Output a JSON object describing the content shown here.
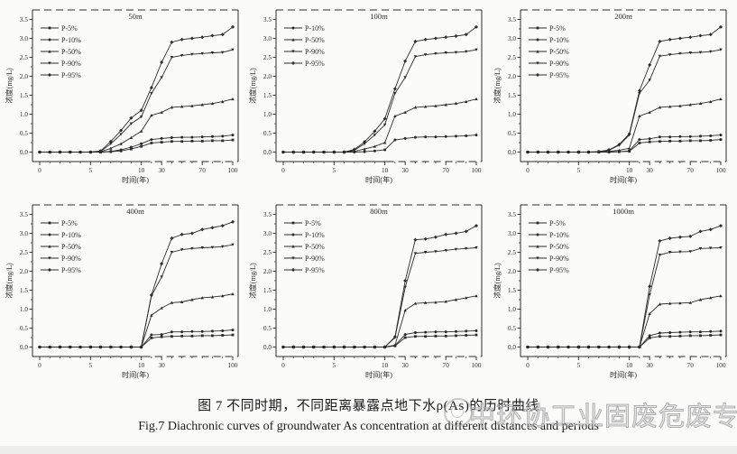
{
  "figure": {
    "caption_cn": "图 7  不同时期，不同距离暴露点地下水ρ(As)的历时曲线",
    "caption_en": "Fig.7 Diachronic curves of groundwater As concentration at different distances and periods",
    "watermark": "中环协工业固废危废专委会",
    "line_color": "#2b2b2b",
    "watermark_color": "#b0b0b0",
    "strip_color": "#ededeb"
  },
  "chart_data": [
    {
      "type": "line",
      "title": "50m",
      "xlabel": "时间(年)",
      "ylabel": "浓度(mg/L)",
      "x": [
        0,
        1,
        2,
        3,
        4,
        5,
        6,
        7,
        8,
        9,
        10,
        20,
        30,
        40,
        50,
        60,
        70,
        80,
        90,
        100
      ],
      "xticks": [
        0,
        5,
        10,
        30,
        70,
        100
      ],
      "yticks": [
        0.0,
        0.5,
        1.0,
        1.5,
        2.0,
        2.5,
        3.0,
        3.5
      ],
      "ylim": [
        -0.25,
        3.75
      ],
      "grid": false,
      "legend_position": "top-left",
      "series": [
        {
          "name": "P-5%",
          "marker": "square",
          "values": [
            0,
            0,
            0,
            0,
            0,
            0,
            0,
            0.01,
            0.03,
            0.08,
            0.15,
            0.24,
            0.26,
            0.28,
            0.28,
            0.29,
            0.29,
            0.3,
            0.3,
            0.32
          ]
        },
        {
          "name": "P-10%",
          "marker": "circle",
          "values": [
            0,
            0,
            0,
            0,
            0,
            0,
            0,
            0.02,
            0.06,
            0.13,
            0.22,
            0.33,
            0.36,
            0.38,
            0.39,
            0.39,
            0.4,
            0.41,
            0.42,
            0.45
          ]
        },
        {
          "name": "P-50%",
          "marker": "triangle-up",
          "values": [
            0,
            0,
            0,
            0,
            0,
            0,
            0.01,
            0.1,
            0.22,
            0.38,
            0.55,
            0.97,
            1.05,
            1.18,
            1.2,
            1.22,
            1.25,
            1.28,
            1.33,
            1.4
          ]
        },
        {
          "name": "P-90%",
          "marker": "triangle-down",
          "values": [
            0,
            0,
            0,
            0,
            0,
            0,
            0.02,
            0.22,
            0.47,
            0.75,
            0.93,
            1.55,
            1.97,
            2.5,
            2.55,
            2.58,
            2.6,
            2.62,
            2.63,
            2.7
          ]
        },
        {
          "name": "P-95%",
          "marker": "diamond",
          "values": [
            0,
            0,
            0,
            0,
            0,
            0,
            0.03,
            0.28,
            0.57,
            0.9,
            1.1,
            1.7,
            2.37,
            2.9,
            2.97,
            3.0,
            3.03,
            3.07,
            3.1,
            3.3
          ]
        }
      ]
    },
    {
      "type": "line",
      "title": "100m",
      "xlabel": "时间(年)",
      "ylabel": "浓度(mg/L)",
      "x": [
        0,
        1,
        2,
        3,
        4,
        5,
        6,
        7,
        8,
        9,
        10,
        20,
        30,
        40,
        50,
        60,
        70,
        80,
        90,
        100
      ],
      "xticks": [
        0,
        5,
        10,
        30,
        70,
        100
      ],
      "yticks": [
        0.0,
        0.5,
        1.0,
        1.5,
        2.0,
        2.5,
        3.0,
        3.5
      ],
      "ylim": [
        -0.25,
        3.75
      ],
      "grid": false,
      "legend_position": "top-left",
      "series": [
        {
          "name": "P-10%",
          "marker": "circle",
          "values": [
            0,
            0,
            0,
            0,
            0,
            0,
            0,
            0,
            0.01,
            0.03,
            0.06,
            0.32,
            0.36,
            0.39,
            0.4,
            0.4,
            0.41,
            0.42,
            0.43,
            0.45
          ]
        },
        {
          "name": "P-50%",
          "marker": "triangle-up",
          "values": [
            0,
            0,
            0,
            0,
            0,
            0,
            0,
            0.02,
            0.08,
            0.15,
            0.25,
            0.95,
            1.05,
            1.18,
            1.2,
            1.22,
            1.25,
            1.28,
            1.33,
            1.4
          ]
        },
        {
          "name": "P-90%",
          "marker": "triangle-down",
          "values": [
            0,
            0,
            0,
            0,
            0,
            0,
            0,
            0.05,
            0.22,
            0.45,
            0.72,
            1.55,
            1.97,
            2.52,
            2.57,
            2.6,
            2.62,
            2.63,
            2.65,
            2.7
          ]
        },
        {
          "name": "P-95%",
          "marker": "diamond",
          "values": [
            0,
            0,
            0,
            0,
            0,
            0,
            0,
            0.07,
            0.27,
            0.55,
            0.88,
            1.67,
            2.4,
            2.92,
            2.97,
            3.0,
            3.03,
            3.06,
            3.1,
            3.3
          ]
        }
      ]
    },
    {
      "type": "line",
      "title": "200m",
      "xlabel": "时间(年)",
      "ylabel": "浓度(mg/L)",
      "x": [
        0,
        1,
        2,
        3,
        4,
        5,
        6,
        7,
        8,
        9,
        10,
        20,
        30,
        40,
        50,
        60,
        70,
        80,
        90,
        100
      ],
      "xticks": [
        0,
        5,
        10,
        30,
        70,
        100
      ],
      "yticks": [
        0.0,
        0.5,
        1.0,
        1.5,
        2.0,
        2.5,
        3.0,
        3.5
      ],
      "ylim": [
        -0.25,
        3.75
      ],
      "grid": false,
      "legend_position": "top-left",
      "series": [
        {
          "name": "P-5%",
          "marker": "square",
          "values": [
            0,
            0,
            0,
            0,
            0,
            0,
            0,
            0,
            0,
            0.01,
            0.02,
            0.24,
            0.27,
            0.28,
            0.29,
            0.29,
            0.3,
            0.3,
            0.31,
            0.33
          ]
        },
        {
          "name": "P-10%",
          "marker": "circle",
          "values": [
            0,
            0,
            0,
            0,
            0,
            0,
            0,
            0,
            0,
            0.01,
            0.03,
            0.33,
            0.35,
            0.4,
            0.4,
            0.41,
            0.41,
            0.42,
            0.43,
            0.45
          ]
        },
        {
          "name": "P-50%",
          "marker": "triangle-up",
          "values": [
            0,
            0,
            0,
            0,
            0,
            0,
            0,
            0,
            0.02,
            0.05,
            0.1,
            0.95,
            1.05,
            1.18,
            1.2,
            1.22,
            1.25,
            1.28,
            1.33,
            1.4
          ]
        },
        {
          "name": "P-90%",
          "marker": "triangle-down",
          "values": [
            0,
            0,
            0,
            0,
            0,
            0,
            0,
            0.01,
            0.05,
            0.18,
            0.45,
            1.55,
            1.9,
            2.53,
            2.57,
            2.6,
            2.62,
            2.63,
            2.65,
            2.7
          ]
        },
        {
          "name": "P-95%",
          "marker": "diamond",
          "values": [
            0,
            0,
            0,
            0,
            0,
            0,
            0,
            0.01,
            0.06,
            0.2,
            0.48,
            1.62,
            2.3,
            2.92,
            2.97,
            3.0,
            3.03,
            3.07,
            3.1,
            3.3
          ]
        }
      ]
    },
    {
      "type": "line",
      "title": "400m",
      "xlabel": "时间(年)",
      "ylabel": "浓度(mg/L)",
      "x": [
        0,
        1,
        2,
        3,
        4,
        5,
        6,
        7,
        8,
        9,
        10,
        20,
        30,
        40,
        50,
        60,
        70,
        80,
        90,
        100
      ],
      "xticks": [
        0,
        5,
        10,
        30,
        100
      ],
      "yticks": [
        0.0,
        0.5,
        1.0,
        1.5,
        2.0,
        2.5,
        3.0,
        3.5
      ],
      "ylim": [
        -0.25,
        3.75
      ],
      "grid": false,
      "legend_position": "top-left",
      "series": [
        {
          "name": "P-5%",
          "marker": "square",
          "values": [
            0,
            0,
            0,
            0,
            0,
            0,
            0,
            0,
            0,
            0,
            0,
            0.24,
            0.27,
            0.28,
            0.29,
            0.29,
            0.3,
            0.3,
            0.31,
            0.32
          ]
        },
        {
          "name": "P-10%",
          "marker": "circle",
          "values": [
            0,
            0,
            0,
            0,
            0,
            0,
            0,
            0,
            0,
            0,
            0,
            0.32,
            0.33,
            0.4,
            0.4,
            0.41,
            0.41,
            0.42,
            0.43,
            0.45
          ]
        },
        {
          "name": "P-50%",
          "marker": "triangle-up",
          "values": [
            0,
            0,
            0,
            0,
            0,
            0,
            0,
            0,
            0,
            0,
            0,
            0.84,
            1.03,
            1.17,
            1.19,
            1.25,
            1.3,
            1.32,
            1.35,
            1.4
          ]
        },
        {
          "name": "P-90%",
          "marker": "triangle-down",
          "values": [
            0,
            0,
            0,
            0,
            0,
            0,
            0,
            0,
            0,
            0,
            0,
            1.35,
            1.85,
            2.5,
            2.57,
            2.6,
            2.62,
            2.63,
            2.65,
            2.7
          ]
        },
        {
          "name": "P-95%",
          "marker": "diamond",
          "values": [
            0,
            0,
            0,
            0,
            0,
            0,
            0,
            0,
            0,
            0,
            0,
            1.37,
            2.2,
            2.87,
            2.97,
            3.0,
            3.1,
            3.15,
            3.2,
            3.3
          ]
        }
      ]
    },
    {
      "type": "line",
      "title": "800m",
      "xlabel": "时间(年)",
      "ylabel": "浓度(mg/L)",
      "x": [
        0,
        1,
        2,
        3,
        4,
        5,
        6,
        7,
        8,
        9,
        10,
        20,
        30,
        40,
        50,
        60,
        70,
        80,
        90,
        100
      ],
      "xticks": [
        0,
        5,
        10,
        30,
        70,
        100
      ],
      "yticks": [
        0.0,
        0.5,
        1.0,
        1.5,
        2.0,
        2.5,
        3.0,
        3.5
      ],
      "ylim": [
        -0.25,
        3.75
      ],
      "grid": false,
      "legend_position": "top-left",
      "series": [
        {
          "name": "P-5%",
          "marker": "square",
          "values": [
            0,
            0,
            0,
            0,
            0,
            0,
            0,
            0,
            0,
            0,
            0,
            0.03,
            0.25,
            0.28,
            0.28,
            0.29,
            0.29,
            0.3,
            0.31,
            0.32
          ]
        },
        {
          "name": "P-10%",
          "marker": "circle",
          "values": [
            0,
            0,
            0,
            0,
            0,
            0,
            0,
            0,
            0,
            0,
            0,
            0.04,
            0.33,
            0.38,
            0.39,
            0.4,
            0.4,
            0.41,
            0.42,
            0.43
          ]
        },
        {
          "name": "P-50%",
          "marker": "triangle-up",
          "values": [
            0,
            0,
            0,
            0,
            0,
            0,
            0,
            0,
            0,
            0,
            0,
            0.05,
            0.97,
            1.15,
            1.17,
            1.18,
            1.2,
            1.25,
            1.3,
            1.35
          ]
        },
        {
          "name": "P-90%",
          "marker": "triangle-down",
          "values": [
            0,
            0,
            0,
            0,
            0,
            0,
            0,
            0,
            0,
            0,
            0,
            0.25,
            1.58,
            2.47,
            2.5,
            2.52,
            2.55,
            2.58,
            2.6,
            2.62
          ]
        },
        {
          "name": "P-95%",
          "marker": "diamond",
          "values": [
            0,
            0,
            0,
            0,
            0,
            0,
            0,
            0,
            0,
            0,
            0,
            0.27,
            1.75,
            2.83,
            2.85,
            2.9,
            2.97,
            3.0,
            3.05,
            3.2
          ]
        }
      ]
    },
    {
      "type": "line",
      "title": "1000m",
      "xlabel": "时间(年)",
      "ylabel": "浓度(mg/L)",
      "x": [
        0,
        1,
        2,
        3,
        4,
        5,
        6,
        7,
        8,
        9,
        10,
        20,
        30,
        40,
        50,
        60,
        70,
        80,
        90,
        100
      ],
      "xticks": [
        0,
        5,
        10,
        30,
        70,
        100
      ],
      "yticks": [
        0.0,
        0.5,
        1.0,
        1.5,
        2.0,
        2.5,
        3.0,
        3.5
      ],
      "ylim": [
        -0.25,
        3.75
      ],
      "grid": false,
      "legend_position": "top-left",
      "series": [
        {
          "name": "P-5%",
          "marker": "square",
          "values": [
            0,
            0,
            0,
            0,
            0,
            0,
            0,
            0,
            0,
            0,
            0,
            0,
            0.24,
            0.28,
            0.28,
            0.29,
            0.3,
            0.3,
            0.31,
            0.32
          ]
        },
        {
          "name": "P-10%",
          "marker": "circle",
          "values": [
            0,
            0,
            0,
            0,
            0,
            0,
            0,
            0,
            0,
            0,
            0,
            0,
            0.3,
            0.37,
            0.38,
            0.39,
            0.4,
            0.4,
            0.41,
            0.42
          ]
        },
        {
          "name": "P-50%",
          "marker": "triangle-up",
          "values": [
            0,
            0,
            0,
            0,
            0,
            0,
            0,
            0,
            0,
            0,
            0,
            0,
            0.88,
            1.13,
            1.15,
            1.16,
            1.17,
            1.25,
            1.3,
            1.35
          ]
        },
        {
          "name": "P-90%",
          "marker": "triangle-down",
          "values": [
            0,
            0,
            0,
            0,
            0,
            0,
            0,
            0,
            0,
            0,
            0,
            0,
            1.38,
            2.43,
            2.5,
            2.51,
            2.52,
            2.6,
            2.61,
            2.62
          ]
        },
        {
          "name": "P-95%",
          "marker": "diamond",
          "values": [
            0,
            0,
            0,
            0,
            0,
            0,
            0,
            0,
            0,
            0,
            0,
            0,
            1.6,
            2.8,
            2.87,
            2.9,
            2.92,
            3.05,
            3.1,
            3.2
          ]
        }
      ]
    }
  ]
}
